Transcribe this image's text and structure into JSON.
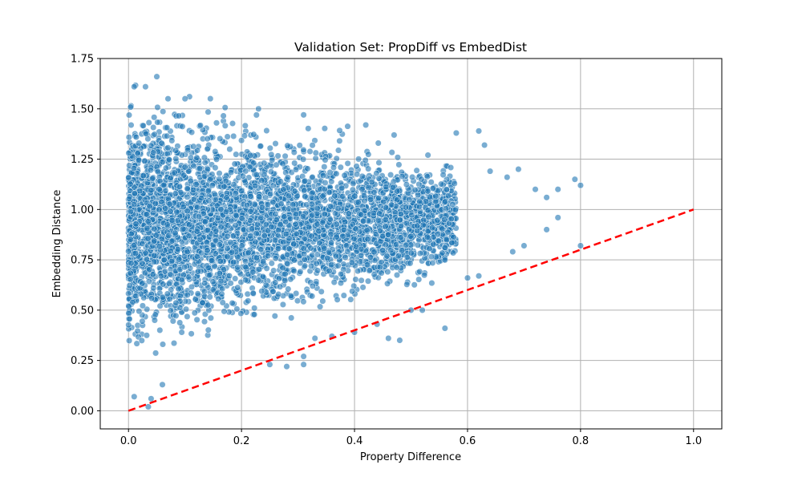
{
  "chart_data": {
    "type": "scatter",
    "title": "Validation Set: PropDiff vs EmbedDist",
    "xlabel": "Property Difference",
    "ylabel": "Embedding Distance",
    "xlim": [
      -0.05,
      1.05
    ],
    "ylim": [
      -0.09,
      1.75
    ],
    "xticks": [
      0.0,
      0.2,
      0.4,
      0.6,
      0.8,
      1.0
    ],
    "xtick_labels": [
      "0.0",
      "0.2",
      "0.4",
      "0.6",
      "0.8",
      "1.0"
    ],
    "yticks": [
      0.0,
      0.25,
      0.5,
      0.75,
      1.0,
      1.25,
      1.5,
      1.75
    ],
    "ytick_labels": [
      "0.00",
      "0.25",
      "0.50",
      "0.75",
      "1.00",
      "1.25",
      "1.50",
      "1.75"
    ],
    "grid": true,
    "legend": "none",
    "colors": {
      "points": "#1f77b4",
      "point_edge": "#ffffff",
      "reference_line": "#ff0000",
      "grid": "#b0b0b0"
    },
    "series": [
      {
        "kind": "points",
        "point_count_estimate": 20000,
        "dense_core": {
          "x_range": [
            0.0,
            0.55
          ],
          "y_range": [
            0.2,
            1.45
          ]
        },
        "visible_outliers": [
          [
            0.01,
            1.61
          ],
          [
            0.03,
            1.61
          ],
          [
            0.05,
            1.66
          ],
          [
            0.07,
            1.55
          ],
          [
            0.1,
            1.55
          ],
          [
            0.23,
            1.5
          ],
          [
            0.31,
            1.47
          ],
          [
            0.42,
            1.42
          ],
          [
            0.47,
            1.37
          ],
          [
            0.53,
            1.27
          ],
          [
            0.58,
            1.38
          ],
          [
            0.62,
            1.39
          ],
          [
            0.63,
            1.32
          ],
          [
            0.64,
            1.19
          ],
          [
            0.67,
            1.16
          ],
          [
            0.69,
            1.2
          ],
          [
            0.72,
            1.1
          ],
          [
            0.74,
            1.06
          ],
          [
            0.76,
            1.1
          ],
          [
            0.79,
            1.15
          ],
          [
            0.8,
            1.12
          ],
          [
            0.74,
            0.9
          ],
          [
            0.76,
            0.96
          ],
          [
            0.8,
            0.82
          ],
          [
            0.7,
            0.82
          ],
          [
            0.68,
            0.79
          ],
          [
            0.62,
            0.67
          ],
          [
            0.6,
            0.66
          ],
          [
            0.56,
            0.41
          ],
          [
            0.52,
            0.5
          ],
          [
            0.5,
            0.5
          ],
          [
            0.48,
            0.35
          ],
          [
            0.46,
            0.36
          ],
          [
            0.44,
            0.43
          ],
          [
            0.4,
            0.39
          ],
          [
            0.36,
            0.37
          ],
          [
            0.33,
            0.36
          ],
          [
            0.31,
            0.27
          ],
          [
            0.31,
            0.23
          ],
          [
            0.28,
            0.22
          ],
          [
            0.25,
            0.23
          ],
          [
            0.06,
            0.13
          ],
          [
            0.04,
            0.06
          ],
          [
            0.035,
            0.02
          ],
          [
            0.01,
            0.07
          ]
        ]
      },
      {
        "kind": "reference_line",
        "style": "dashed",
        "x": [
          0.0,
          1.0
        ],
        "y": [
          0.0,
          1.0
        ]
      }
    ]
  }
}
